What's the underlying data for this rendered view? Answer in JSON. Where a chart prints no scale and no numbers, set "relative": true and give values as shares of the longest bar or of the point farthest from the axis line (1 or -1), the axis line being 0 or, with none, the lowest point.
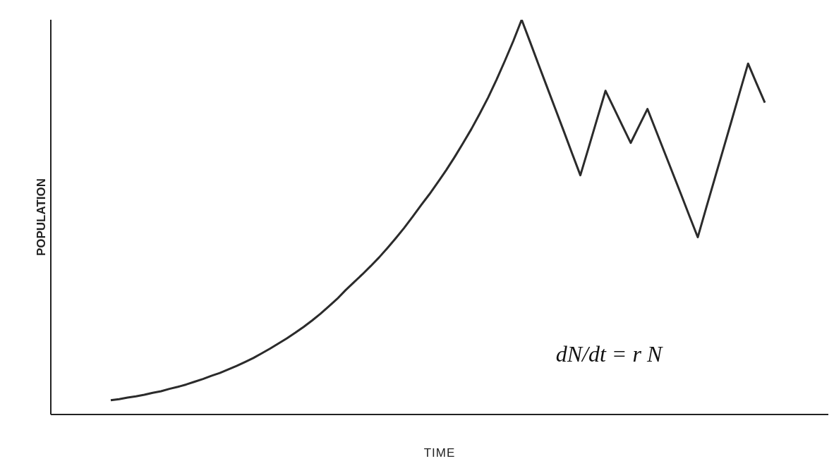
{
  "chart_data": {
    "type": "line",
    "relative": true,
    "xlabel": "TIME",
    "ylabel": "POPULATION",
    "grid": false,
    "marker": "none",
    "line_style": "solid",
    "annotations": [
      "dN/dt = r N"
    ],
    "categories": [
      null,
      null,
      null,
      null,
      null,
      null,
      null,
      null,
      null,
      null,
      null,
      null,
      null,
      null,
      null,
      null,
      null,
      null,
      null,
      null,
      null,
      null,
      null,
      null,
      null,
      null,
      null,
      null,
      null,
      null,
      null,
      null,
      null,
      null,
      null,
      null,
      null,
      null,
      null,
      null,
      null,
      null,
      null,
      null,
      null,
      null,
      null,
      null,
      null,
      null,
      null,
      null,
      null,
      null,
      null,
      null,
      null,
      null,
      null,
      null,
      null,
      null,
      null,
      null,
      null,
      null,
      null,
      null,
      null,
      null,
      null,
      null,
      null,
      null,
      null,
      null,
      null,
      null,
      null
    ],
    "series": [
      {
        "color": "#2b2b2b",
        "values": [
          0.036,
          0.039,
          0.043,
          0.046,
          0.05,
          0.055,
          0.059,
          0.065,
          0.07,
          0.076,
          0.083,
          0.09,
          0.098,
          0.105,
          0.114,
          0.123,
          0.133,
          0.143,
          0.155,
          0.167,
          0.18,
          0.193,
          0.207,
          0.222,
          0.238,
          0.255,
          0.274,
          0.293,
          0.315,
          0.335,
          0.355,
          0.376,
          0.398,
          0.422,
          0.447,
          0.473,
          0.501,
          0.53,
          0.558,
          0.588,
          0.619,
          0.652,
          0.687,
          0.723,
          0.762,
          0.803,
          0.848,
          0.896,
          0.946,
          1,
          0.944,
          0.887,
          0.831,
          0.775,
          0.719,
          0.662,
          0.606,
          0.677,
          0.749,
          0.82,
          0.776,
          0.732,
          0.688,
          0.731,
          0.774,
          0.72,
          0.666,
          0.612,
          0.558,
          0.503,
          0.449,
          0.523,
          0.596,
          0.669,
          0.742,
          0.816,
          0.889,
          0.839,
          0.79
        ]
      }
    ]
  }
}
